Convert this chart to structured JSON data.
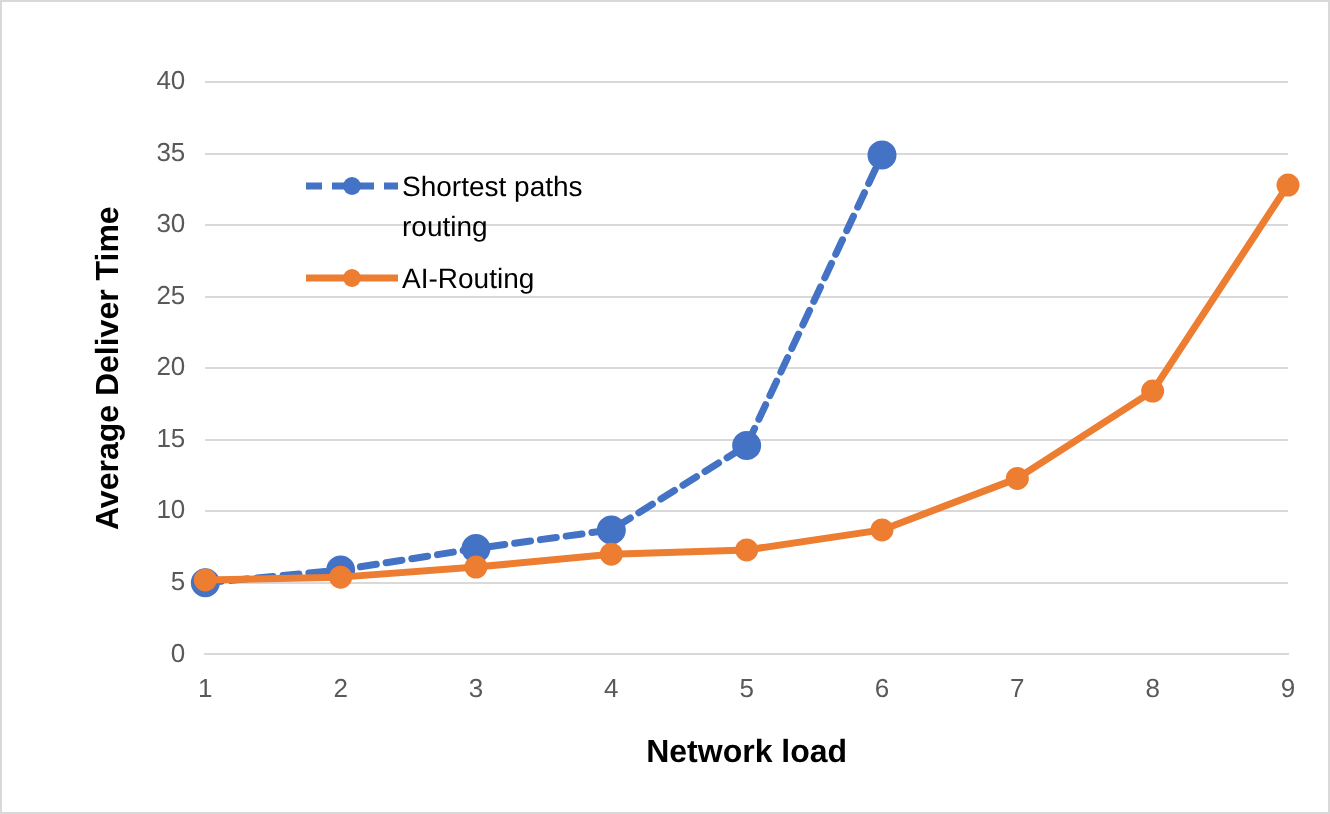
{
  "chart_data": {
    "type": "line",
    "xlabel": "Network load",
    "ylabel": "Average Deliver Time",
    "categories": [
      "1",
      "2",
      "3",
      "4",
      "5",
      "6",
      "7",
      "8",
      "9"
    ],
    "series": [
      {
        "name": "Shortest paths routing",
        "color": "#4472c4",
        "line_style": "dashed",
        "values": [
          5.0,
          5.9,
          7.4,
          8.7,
          14.6,
          34.9,
          null,
          null,
          null
        ]
      },
      {
        "name": "AI-Routing",
        "color": "#ed7d31",
        "line_style": "solid",
        "values": [
          5.2,
          5.4,
          6.1,
          7.0,
          7.3,
          8.7,
          12.3,
          18.4,
          32.8
        ]
      }
    ],
    "ylim": [
      0,
      40
    ],
    "yticks": [
      0,
      5,
      10,
      15,
      20,
      25,
      30,
      35,
      40
    ],
    "grid": "y",
    "legend": "top left",
    "marker": "circle"
  }
}
